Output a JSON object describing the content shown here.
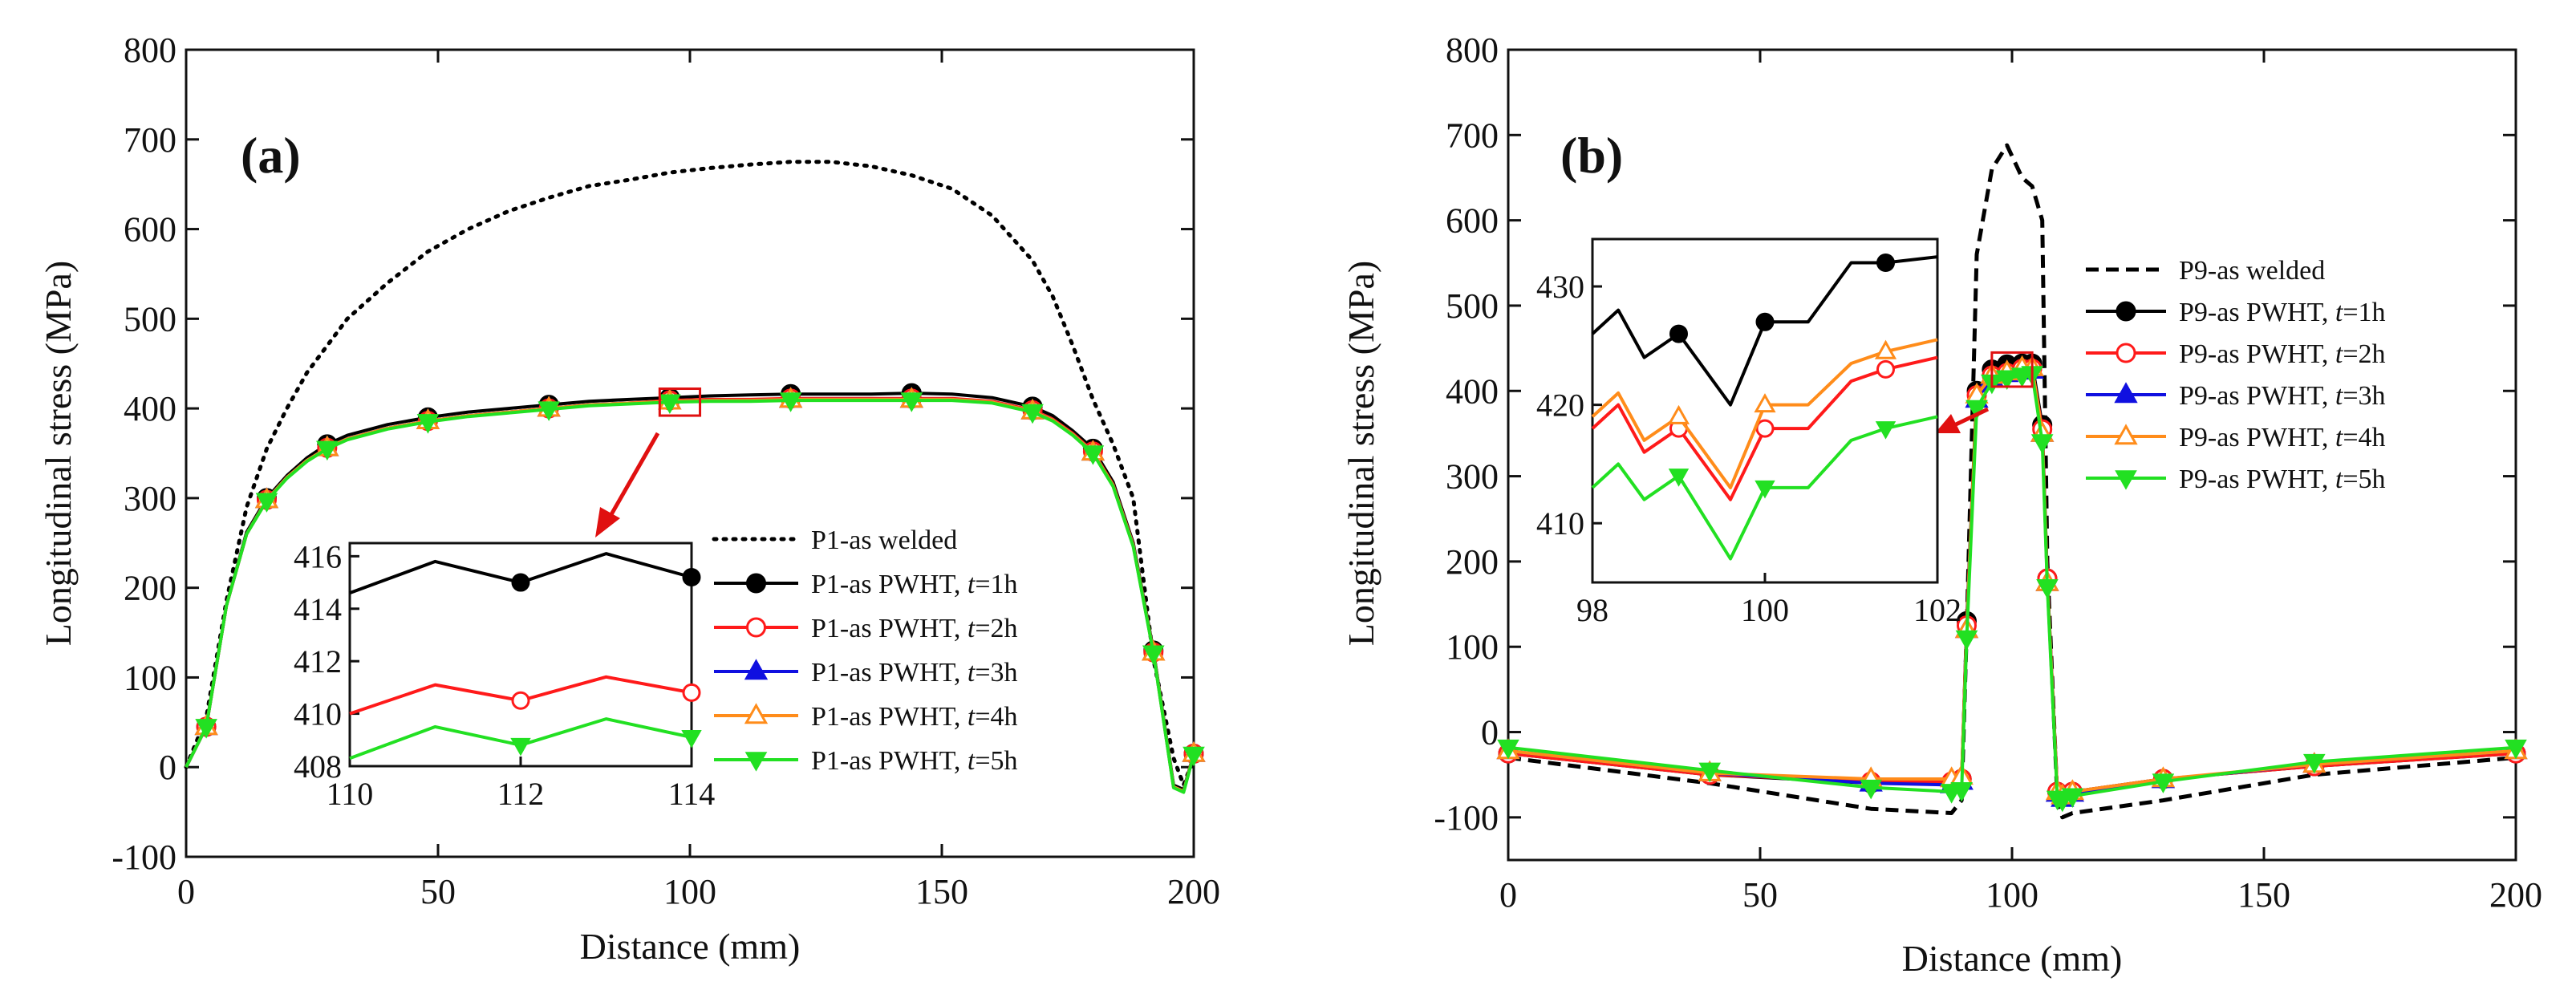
{
  "figure": {
    "panel_a_label": "(a)",
    "panel_b_label": "(b)"
  },
  "colors": {
    "as_welded": "#000000",
    "t1": "#000000",
    "t2": "#ff1a1a",
    "t3": "#1010e0",
    "t4": "#ff8c1a",
    "t5": "#22e022",
    "highlight": "#e01010"
  },
  "chart_data": [
    {
      "type": "line",
      "panel": "(a)",
      "title": "",
      "xlabel": "Distance (mm)",
      "ylabel": "Longitudinal stress (MPa)",
      "xlim": [
        0,
        200
      ],
      "ylim": [
        -100,
        800
      ],
      "xticks": [
        0,
        50,
        100,
        150,
        200
      ],
      "yticks": [
        -100,
        0,
        100,
        200,
        300,
        400,
        500,
        600,
        700,
        800
      ],
      "x": [
        0,
        4,
        8,
        12,
        16,
        20,
        24,
        28,
        32,
        40,
        48,
        56,
        64,
        72,
        80,
        88,
        96,
        104,
        112,
        120,
        128,
        136,
        144,
        152,
        160,
        168,
        172,
        176,
        180,
        184,
        188,
        192,
        196,
        198,
        200
      ],
      "series": [
        {
          "name": "P1-as welded",
          "key": "t0",
          "style": "dotted",
          "marker": "none",
          "values": [
            0,
            55,
            185,
            290,
            355,
            400,
            440,
            470,
            500,
            540,
            575,
            600,
            620,
            635,
            648,
            655,
            663,
            668,
            672,
            675,
            675,
            670,
            660,
            645,
            615,
            565,
            525,
            470,
            410,
            360,
            300,
            120,
            10,
            -20,
            10
          ]
        },
        {
          "name": "P1-as PWHT, t=1h",
          "key": "t1",
          "style": "solid",
          "marker": "filled-circle",
          "values": [
            0,
            45,
            180,
            262,
            300,
            325,
            345,
            360,
            370,
            382,
            390,
            396,
            400,
            404,
            408,
            410,
            412,
            414,
            415,
            416,
            416,
            416,
            417,
            416,
            412,
            402,
            392,
            375,
            355,
            318,
            250,
            130,
            -20,
            -25,
            15
          ]
        },
        {
          "name": "P1-as PWHT, t=2h",
          "key": "t2",
          "style": "solid",
          "marker": "open-circle",
          "values": [
            0,
            45,
            180,
            260,
            298,
            323,
            342,
            356,
            366,
            378,
            386,
            392,
            396,
            400,
            404,
            406,
            409,
            410,
            410,
            411,
            411,
            411,
            411,
            411,
            408,
            398,
            388,
            372,
            352,
            315,
            248,
            128,
            -22,
            -27,
            15
          ]
        },
        {
          "name": "P1-as PWHT, t=3h",
          "key": "t3",
          "style": "solid",
          "marker": "filled-triangle-up",
          "values": [
            0,
            45,
            180,
            260,
            298,
            323,
            342,
            356,
            366,
            378,
            386,
            392,
            396,
            400,
            404,
            406,
            408,
            409,
            409,
            410,
            410,
            410,
            410,
            410,
            407,
            397,
            387,
            371,
            351,
            314,
            247,
            128,
            -22,
            -27,
            15
          ]
        },
        {
          "name": "P1-as PWHT, t=4h",
          "key": "t4",
          "style": "solid",
          "marker": "open-triangle-up",
          "values": [
            0,
            45,
            180,
            260,
            298,
            323,
            342,
            356,
            366,
            378,
            386,
            392,
            396,
            400,
            404,
            406,
            408,
            409,
            409,
            410,
            410,
            410,
            410,
            410,
            407,
            397,
            387,
            371,
            351,
            314,
            247,
            128,
            -22,
            -27,
            15
          ]
        },
        {
          "name": "P1-as PWHT, t=5h",
          "key": "t5",
          "style": "solid",
          "marker": "filled-triangle-down",
          "values": [
            0,
            45,
            180,
            260,
            297,
            322,
            341,
            355,
            365,
            377,
            385,
            391,
            395,
            399,
            403,
            405,
            407,
            408,
            408,
            409,
            409,
            409,
            409,
            409,
            406,
            396,
            386,
            370,
            350,
            313,
            246,
            127,
            -23,
            -28,
            14
          ]
        }
      ],
      "legend": {
        "placement": "bottom-right",
        "entries": [
          {
            "prefix": "P1-as welded",
            "t": "",
            "suffix": ""
          },
          {
            "prefix": "P1-as PWHT, ",
            "t": "t",
            "suffix": "=1h"
          },
          {
            "prefix": "P1-as PWHT, ",
            "t": "t",
            "suffix": "=2h"
          },
          {
            "prefix": "P1-as PWHT, ",
            "t": "t",
            "suffix": "=3h"
          },
          {
            "prefix": "P1-as PWHT, ",
            "t": "t",
            "suffix": "=4h"
          },
          {
            "prefix": "P1-as PWHT, ",
            "t": "t",
            "suffix": "=5h"
          }
        ]
      },
      "highlight_box": {
        "x": [
          94,
          102
        ],
        "y": [
          392,
          422
        ]
      },
      "inset": {
        "xlim": [
          110,
          114
        ],
        "ylim": [
          408,
          416.5
        ],
        "xticks": [
          110,
          112,
          114
        ],
        "yticks": [
          408,
          410,
          412,
          414,
          416
        ],
        "x": [
          110,
          111,
          112,
          113,
          114
        ],
        "series": [
          {
            "key": "t1",
            "values": [
              414.6,
              415.8,
              415.0,
              416.1,
              415.2
            ],
            "marker": "filled-circle",
            "marker_x": [
              112,
              114
            ]
          },
          {
            "key": "t2",
            "values": [
              410.0,
              411.1,
              410.5,
              411.4,
              410.8
            ],
            "marker": "open-circle",
            "marker_x": [
              112,
              114
            ]
          },
          {
            "key": "t5",
            "values": [
              408.3,
              409.5,
              408.8,
              409.8,
              409.1
            ],
            "marker": "filled-triangle-down",
            "marker_x": [
              112,
              114
            ]
          }
        ]
      }
    },
    {
      "type": "line",
      "panel": "(b)",
      "title": "",
      "xlabel": "Distance (mm)",
      "ylabel": "Longitudinal stress (MPa)",
      "xlim": [
        0,
        200
      ],
      "ylim": [
        -150,
        800
      ],
      "xticks": [
        0,
        50,
        100,
        150,
        200
      ],
      "yticks": [
        -100,
        0,
        100,
        200,
        300,
        400,
        500,
        600,
        700,
        800
      ],
      "x": [
        0,
        40,
        72,
        88,
        90,
        91,
        93,
        96,
        99,
        102,
        104,
        106,
        107,
        109,
        110,
        112,
        130,
        160,
        200
      ],
      "series": [
        {
          "name": "P9-as welded",
          "key": "t0",
          "style": "dashed",
          "marker": "none",
          "values": [
            -30,
            -60,
            -90,
            -95,
            -80,
            120,
            560,
            660,
            688,
            650,
            640,
            600,
            200,
            -80,
            -100,
            -95,
            -80,
            -50,
            -30
          ]
        },
        {
          "name": "P9-as PWHT, t=1h",
          "key": "t1",
          "style": "solid",
          "marker": "filled-circle",
          "values": [
            -25,
            -50,
            -60,
            -60,
            -55,
            130,
            400,
            425,
            431,
            432,
            432,
            360,
            180,
            -70,
            -75,
            -70,
            -55,
            -40,
            -25
          ]
        },
        {
          "name": "P9-as PWHT, t=2h",
          "key": "t2",
          "style": "solid",
          "marker": "open-circle",
          "values": [
            -25,
            -50,
            -58,
            -58,
            -55,
            125,
            395,
            418,
            421,
            426,
            426,
            355,
            180,
            -70,
            -75,
            -70,
            -55,
            -40,
            -25
          ]
        },
        {
          "name": "P9-as PWHT, t=3h",
          "key": "t3",
          "style": "solid",
          "marker": "filled-triangle-up",
          "values": [
            -22,
            -48,
            -60,
            -62,
            -58,
            120,
            390,
            415,
            420,
            423,
            424,
            350,
            175,
            -72,
            -78,
            -72,
            -56,
            -38,
            -22
          ]
        },
        {
          "name": "P9-as PWHT, t=4h",
          "key": "t4",
          "style": "solid",
          "marker": "open-triangle-up",
          "values": [
            -22,
            -48,
            -55,
            -55,
            -52,
            120,
            395,
            418,
            422,
            427,
            427,
            350,
            175,
            -70,
            -75,
            -70,
            -55,
            -38,
            -22
          ]
        },
        {
          "name": "P9-as PWHT, t=5h",
          "key": "t5",
          "style": "solid",
          "marker": "filled-triangle-down",
          "values": [
            -18,
            -45,
            -65,
            -70,
            -68,
            110,
            380,
            410,
            415,
            418,
            420,
            340,
            170,
            -78,
            -80,
            -75,
            -58,
            -35,
            -18
          ]
        }
      ],
      "legend": {
        "placement": "right",
        "entries": [
          {
            "prefix": "P9-as welded",
            "t": "",
            "suffix": ""
          },
          {
            "prefix": "P9-as PWHT, ",
            "t": "t",
            "suffix": "=1h"
          },
          {
            "prefix": "P9-as PWHT, ",
            "t": "t",
            "suffix": "=2h"
          },
          {
            "prefix": "P9-as PWHT, ",
            "t": "t",
            "suffix": "=3h"
          },
          {
            "prefix": "P9-as PWHT, ",
            "t": "t",
            "suffix": "=4h"
          },
          {
            "prefix": "P9-as PWHT, ",
            "t": "t",
            "suffix": "=5h"
          }
        ]
      },
      "highlight_box": {
        "x": [
          96,
          104
        ],
        "y": [
          405,
          445
        ]
      },
      "inset": {
        "xlim": [
          98,
          102
        ],
        "ylim": [
          405,
          434
        ],
        "xticks": [
          98,
          100,
          102
        ],
        "yticks": [
          410,
          420,
          430
        ],
        "x": [
          98,
          98.3,
          98.6,
          99.0,
          99.6,
          100.0,
          100.5,
          101.0,
          101.4,
          102.0
        ],
        "series": [
          {
            "key": "t1",
            "values": [
              426,
              428,
              424,
              426,
              420,
              427,
              427,
              432,
              432,
              432.5
            ],
            "marker": "filled-circle",
            "marker_x": [
              99.0,
              100.0,
              101.4
            ]
          },
          {
            "key": "t2",
            "values": [
              418,
              420,
              416,
              418,
              412,
              418,
              418,
              422,
              423,
              424
            ],
            "marker": "open-circle",
            "marker_x": [
              99.0,
              100.0,
              101.4
            ]
          },
          {
            "key": "t4",
            "values": [
              419,
              421,
              417,
              419,
              413,
              420,
              420,
              423.5,
              424.5,
              425.5
            ],
            "marker": "open-triangle-up",
            "marker_x": [
              99.0,
              100.0,
              101.4
            ]
          },
          {
            "key": "t5",
            "values": [
              413,
              415,
              412,
              414,
              407,
              413,
              413,
              417,
              418,
              419
            ],
            "marker": "filled-triangle-down",
            "marker_x": [
              99.0,
              100.0,
              101.4
            ]
          }
        ]
      }
    }
  ]
}
